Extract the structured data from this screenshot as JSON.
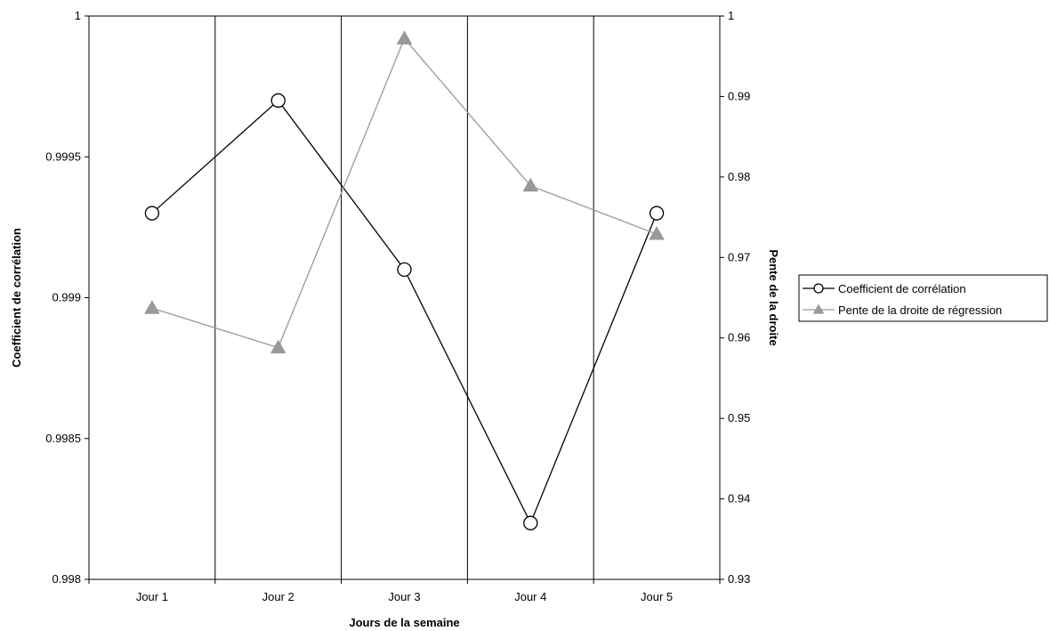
{
  "chart_data": {
    "type": "line",
    "categories": [
      "Jour 1",
      "Jour 2",
      "Jour 3",
      "Jour 4",
      "Jour 5"
    ],
    "xlabel": "Jours de la semaine",
    "ylabel_left": "Coefficient de corrélation",
    "ylabel_right": "Pente de la droite",
    "ylim_left": [
      0.998,
      1
    ],
    "ylim_right": [
      0.93,
      1
    ],
    "yticks_left": [
      "0.998",
      "0.9985",
      "0.999",
      "0.9995",
      "1"
    ],
    "yticks_right": [
      "0.93",
      "0.94",
      "0.95",
      "0.96",
      "0.97",
      "0.98",
      "0.99",
      "1"
    ],
    "grid": "vertical",
    "legend_position": "right",
    "series": [
      {
        "name": "Coefficient de corrélation",
        "axis": "left",
        "marker": "circle",
        "color": "#000000",
        "values": [
          0.9993,
          0.9997,
          0.9991,
          0.9982,
          0.9993
        ]
      },
      {
        "name": "Pente de la droite de régression",
        "axis": "right",
        "marker": "triangle",
        "color": "#999999",
        "values": [
          0.9637,
          0.9588,
          0.9972,
          0.9789,
          0.9729
        ]
      }
    ]
  }
}
